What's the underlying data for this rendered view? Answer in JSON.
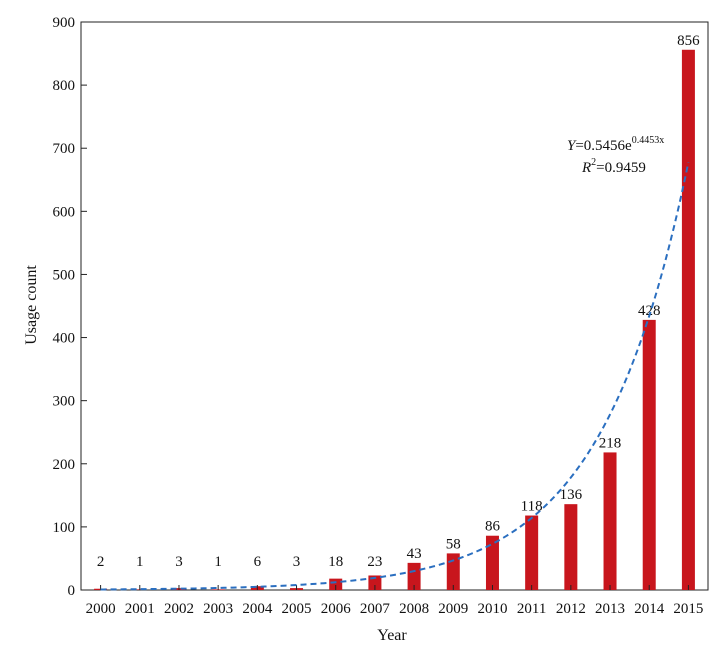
{
  "chart_data": {
    "type": "bar",
    "xlabel": "Year",
    "ylabel": "Usage count",
    "ylim": [
      0,
      900
    ],
    "yticks": [
      0,
      100,
      200,
      300,
      400,
      500,
      600,
      700,
      800,
      900
    ],
    "grid": false,
    "categories": [
      "2000",
      "2001",
      "2002",
      "2003",
      "2004",
      "2005",
      "2006",
      "2007",
      "2008",
      "2009",
      "2010",
      "2011",
      "2012",
      "2013",
      "2014",
      "2015"
    ],
    "values": [
      2,
      1,
      3,
      1,
      6,
      3,
      18,
      23,
      43,
      58,
      86,
      118,
      136,
      218,
      428,
      856
    ],
    "bar_color": "#c8161d",
    "trendline": {
      "type": "exponential",
      "a": 0.5456,
      "b": 0.4453,
      "r2": 0.9459,
      "style": "dashed",
      "color": "#2b6fc0",
      "equation_text": {
        "lhs": "Y",
        "mid": "=0.5456e",
        "exponent": "0.4453x",
        "r2_label": "R",
        "r2_sup": "2",
        "r2_value": "=0.9459"
      }
    }
  }
}
